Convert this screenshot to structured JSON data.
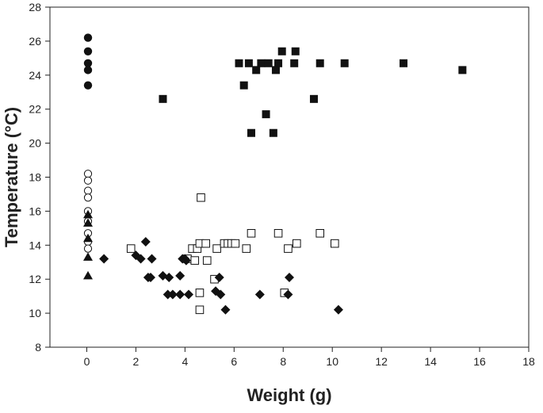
{
  "chart_data": {
    "type": "scatter",
    "title": "",
    "xlabel": "Weight (g)",
    "ylabel": "Temperature (°C)",
    "xlim": [
      -1.5,
      18
    ],
    "ylim": [
      8,
      28
    ],
    "x_ticks": [
      0,
      2,
      4,
      6,
      8,
      10,
      12,
      14,
      16,
      18
    ],
    "y_ticks": [
      8,
      10,
      12,
      14,
      16,
      18,
      20,
      22,
      24,
      26,
      28
    ],
    "grid": false,
    "legend": "none",
    "colors": {
      "marker": "#111111",
      "axis": "#222222",
      "background": "#ffffff"
    },
    "series": [
      {
        "marker": "filled-circle",
        "points": [
          [
            0.05,
            26.2
          ],
          [
            0.05,
            25.4
          ],
          [
            0.05,
            24.7
          ],
          [
            0.05,
            24.3
          ],
          [
            0.05,
            23.4
          ]
        ]
      },
      {
        "marker": "filled-square",
        "points": [
          [
            3.1,
            22.6
          ],
          [
            6.2,
            24.7
          ],
          [
            6.4,
            23.4
          ],
          [
            6.6,
            24.7
          ],
          [
            6.7,
            20.6
          ],
          [
            6.9,
            24.3
          ],
          [
            7.1,
            24.7
          ],
          [
            7.3,
            21.7
          ],
          [
            7.4,
            24.7
          ],
          [
            7.6,
            20.6
          ],
          [
            7.7,
            24.3
          ],
          [
            7.8,
            24.7
          ],
          [
            7.95,
            25.4
          ],
          [
            8.45,
            24.7
          ],
          [
            8.5,
            25.4
          ],
          [
            9.25,
            22.6
          ],
          [
            9.5,
            24.7
          ],
          [
            10.5,
            24.7
          ],
          [
            12.9,
            24.7
          ],
          [
            15.3,
            24.3
          ]
        ]
      },
      {
        "marker": "open-circle",
        "points": [
          [
            0.05,
            18.2
          ],
          [
            0.05,
            17.8
          ],
          [
            0.05,
            17.2
          ],
          [
            0.05,
            16.8
          ],
          [
            0.05,
            16.0
          ],
          [
            0.05,
            15.4
          ],
          [
            0.05,
            14.7
          ],
          [
            0.05,
            14.2
          ],
          [
            0.05,
            13.8
          ]
        ]
      },
      {
        "marker": "filled-triangle",
        "points": [
          [
            0.05,
            15.8
          ],
          [
            0.05,
            15.3
          ],
          [
            0.05,
            14.4
          ],
          [
            0.05,
            13.3
          ],
          [
            0.05,
            12.2
          ]
        ]
      },
      {
        "marker": "open-square",
        "points": [
          [
            1.8,
            13.8
          ],
          [
            4.1,
            13.2
          ],
          [
            4.3,
            13.8
          ],
          [
            4.4,
            13.1
          ],
          [
            4.5,
            13.8
          ],
          [
            4.6,
            14.1
          ],
          [
            4.6,
            10.2
          ],
          [
            4.65,
            16.8
          ],
          [
            4.6,
            11.2
          ],
          [
            4.85,
            14.1
          ],
          [
            4.9,
            13.1
          ],
          [
            5.2,
            12.0
          ],
          [
            5.3,
            13.8
          ],
          [
            5.6,
            14.1
          ],
          [
            5.75,
            14.1
          ],
          [
            5.9,
            14.1
          ],
          [
            6.05,
            14.1
          ],
          [
            6.5,
            13.8
          ],
          [
            6.7,
            14.7
          ],
          [
            7.8,
            14.7
          ],
          [
            8.05,
            11.2
          ],
          [
            8.2,
            13.8
          ],
          [
            8.55,
            14.1
          ],
          [
            9.5,
            14.7
          ],
          [
            10.1,
            14.1
          ]
        ]
      },
      {
        "marker": "filled-diamond",
        "points": [
          [
            0.7,
            13.2
          ],
          [
            2.0,
            13.4
          ],
          [
            2.2,
            13.2
          ],
          [
            2.4,
            14.2
          ],
          [
            2.5,
            12.1
          ],
          [
            2.6,
            12.1
          ],
          [
            2.65,
            13.2
          ],
          [
            3.1,
            12.2
          ],
          [
            3.3,
            11.1
          ],
          [
            3.35,
            12.1
          ],
          [
            3.5,
            11.1
          ],
          [
            3.8,
            12.2
          ],
          [
            3.8,
            11.1
          ],
          [
            3.9,
            13.2
          ],
          [
            4.0,
            13.2
          ],
          [
            4.05,
            13.1
          ],
          [
            4.15,
            11.1
          ],
          [
            5.25,
            11.3
          ],
          [
            5.4,
            12.1
          ],
          [
            5.45,
            11.1
          ],
          [
            5.65,
            10.2
          ],
          [
            7.05,
            11.1
          ],
          [
            8.2,
            11.1
          ],
          [
            8.25,
            12.1
          ],
          [
            10.25,
            10.2
          ]
        ]
      }
    ]
  }
}
